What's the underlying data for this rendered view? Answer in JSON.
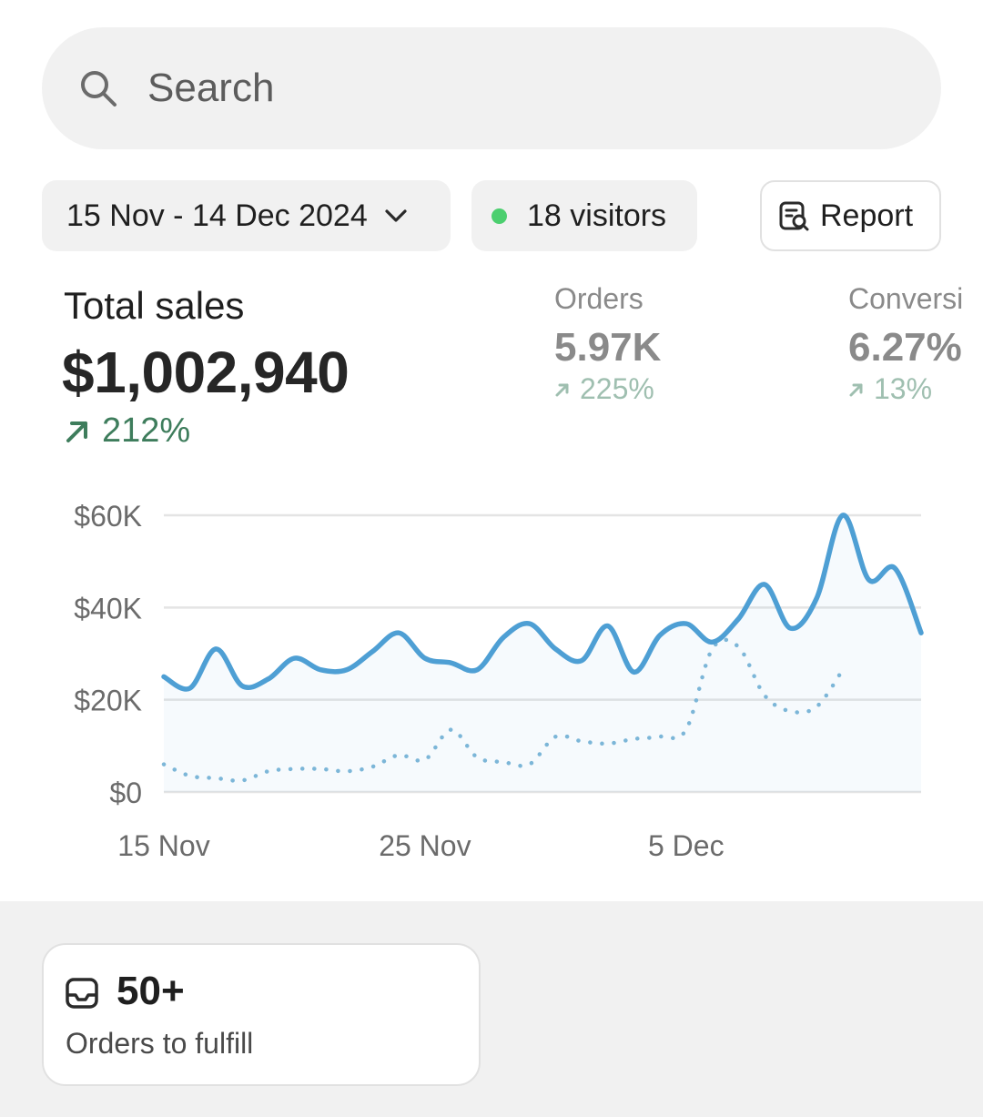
{
  "search": {
    "placeholder": "Search"
  },
  "filters": {
    "date_range": "15 Nov - 14 Dec 2024",
    "visitors": "18 visitors",
    "report_label": "Report"
  },
  "metrics": {
    "total_sales": {
      "label": "Total sales",
      "value": "$1,002,940",
      "change": "212%"
    },
    "orders": {
      "label": "Orders",
      "value": "5.97K",
      "change": "225%"
    },
    "conversion": {
      "label": "Conversi",
      "value": "6.27%",
      "change": "13%"
    }
  },
  "colors": {
    "accent_line": "#4e9fd4",
    "comparison_line": "#7fb8d8",
    "positive": "#3e7d5c",
    "live_dot": "#4ccf6f"
  },
  "chart_data": {
    "type": "line",
    "y_tick_labels": [
      "$60K",
      "$40K",
      "$20K",
      "$0"
    ],
    "x_tick_labels": [
      "15 Nov",
      "25 Nov",
      "5 Dec"
    ],
    "ylim": [
      0,
      60000
    ],
    "grid": true,
    "x": [
      "15 Nov",
      "16 Nov",
      "17 Nov",
      "18 Nov",
      "19 Nov",
      "20 Nov",
      "21 Nov",
      "22 Nov",
      "23 Nov",
      "24 Nov",
      "25 Nov",
      "26 Nov",
      "27 Nov",
      "28 Nov",
      "29 Nov",
      "30 Nov",
      "1 Dec",
      "2 Dec",
      "3 Dec",
      "4 Dec",
      "5 Dec",
      "6 Dec",
      "7 Dec",
      "8 Dec",
      "9 Dec",
      "10 Dec",
      "11 Dec",
      "12 Dec",
      "13 Dec",
      "14 Dec"
    ],
    "series": [
      {
        "values": [
          25000,
          22500,
          31000,
          23000,
          24500,
          29000,
          26500,
          26500,
          30500,
          34500,
          29000,
          28000,
          26500,
          33500,
          36500,
          31000,
          28500,
          36000,
          26000,
          34000,
          36500,
          32500,
          37500,
          45000,
          35500,
          42000,
          60000,
          46000,
          48500,
          34500
        ]
      },
      {
        "values": [
          6000,
          3500,
          3000,
          2500,
          4500,
          5000,
          5000,
          4500,
          5500,
          8000,
          7000,
          13500,
          7500,
          6500,
          6000,
          12000,
          11000,
          10500,
          11500,
          12000,
          13500,
          31000,
          31500,
          21000,
          17500,
          18500,
          26500,
          null,
          null,
          null
        ]
      }
    ]
  },
  "fulfill_card": {
    "count": "50+",
    "label": "Orders to fulfill"
  }
}
